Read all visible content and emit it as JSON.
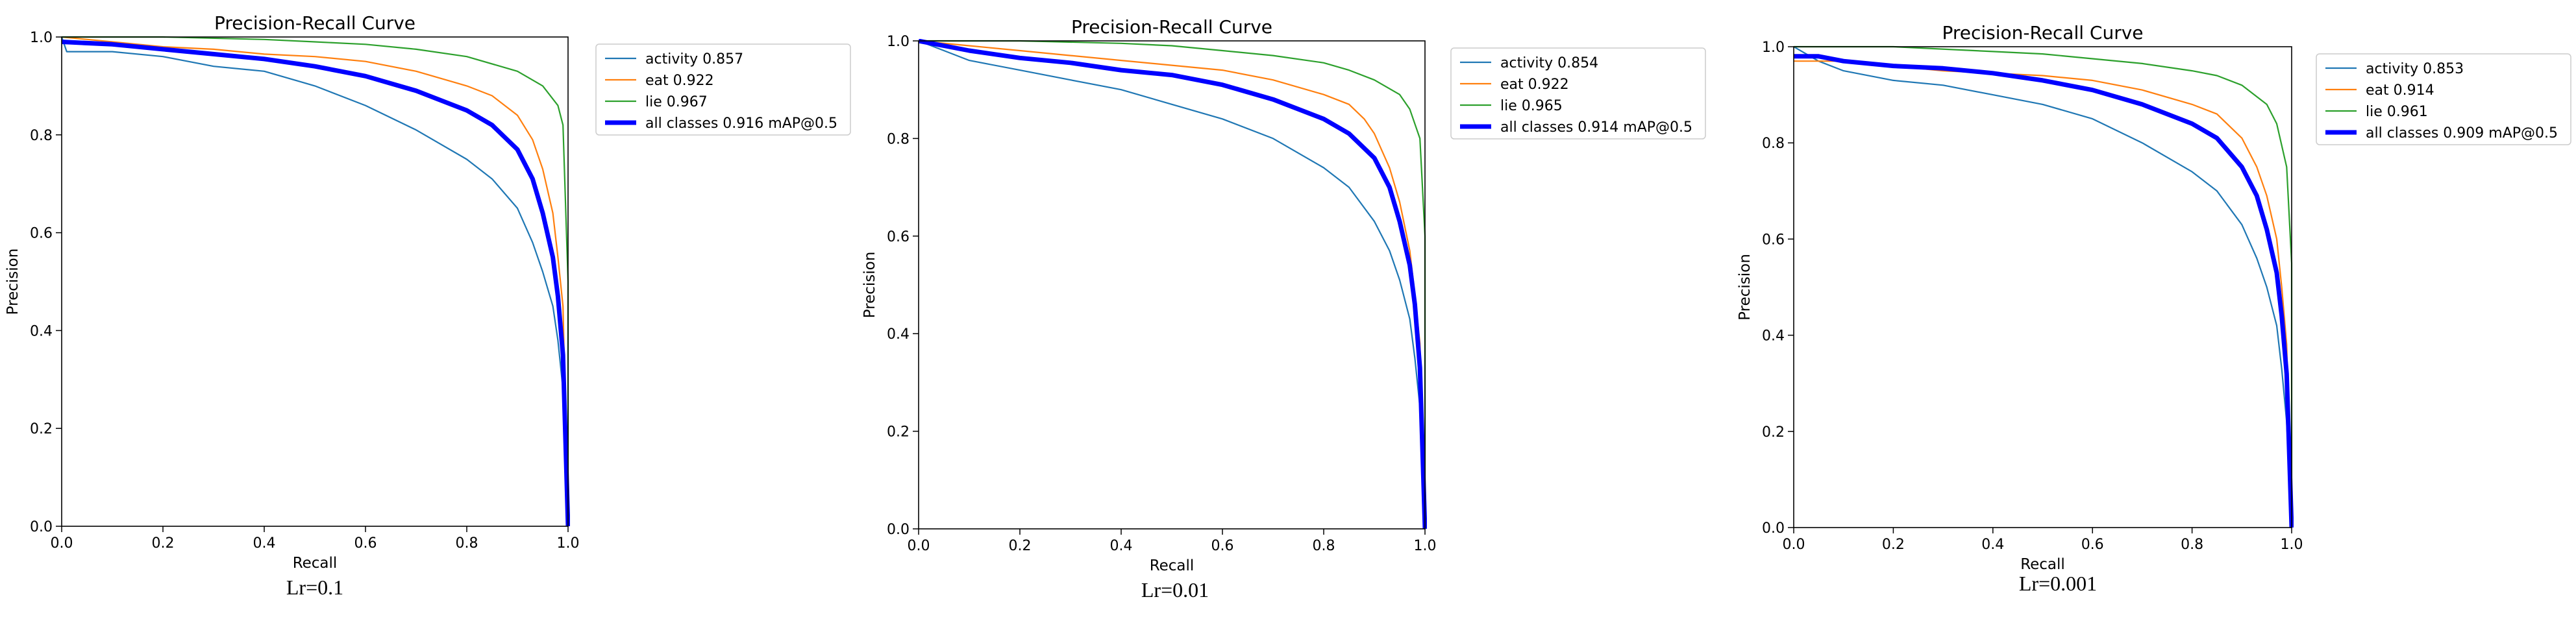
{
  "legend_location": "outside-right-top",
  "colors": {
    "activity": "#1f77b4",
    "eat": "#ff7f0e",
    "lie": "#2ca02c",
    "all": "#0000ff"
  },
  "chart_data": [
    {
      "type": "line",
      "title": "Precision-Recall Curve",
      "xlabel": "Recall",
      "ylabel": "Precision",
      "xlim": [
        0,
        1
      ],
      "ylim": [
        0,
        1
      ],
      "xticks": [
        "0.0",
        "0.2",
        "0.4",
        "0.6",
        "0.8",
        "1.0"
      ],
      "yticks": [
        "0.0",
        "0.2",
        "0.4",
        "0.6",
        "0.8",
        "1.0"
      ],
      "caption": "Lr=0.1",
      "series": [
        {
          "key": "activity",
          "name": "activity 0.857",
          "points": [
            [
              0,
              1
            ],
            [
              0.01,
              0.97
            ],
            [
              0.1,
              0.97
            ],
            [
              0.2,
              0.96
            ],
            [
              0.3,
              0.94
            ],
            [
              0.4,
              0.93
            ],
            [
              0.5,
              0.9
            ],
            [
              0.6,
              0.86
            ],
            [
              0.7,
              0.81
            ],
            [
              0.8,
              0.75
            ],
            [
              0.85,
              0.71
            ],
            [
              0.9,
              0.65
            ],
            [
              0.93,
              0.58
            ],
            [
              0.95,
              0.52
            ],
            [
              0.97,
              0.45
            ],
            [
              0.98,
              0.38
            ],
            [
              0.99,
              0.28
            ],
            [
              1.0,
              0.0
            ]
          ]
        },
        {
          "key": "eat",
          "name": "eat 0.922",
          "points": [
            [
              0,
              1
            ],
            [
              0.1,
              0.99
            ],
            [
              0.2,
              0.98
            ],
            [
              0.3,
              0.975
            ],
            [
              0.4,
              0.965
            ],
            [
              0.5,
              0.96
            ],
            [
              0.6,
              0.95
            ],
            [
              0.7,
              0.93
            ],
            [
              0.8,
              0.9
            ],
            [
              0.85,
              0.88
            ],
            [
              0.9,
              0.84
            ],
            [
              0.93,
              0.79
            ],
            [
              0.95,
              0.73
            ],
            [
              0.97,
              0.64
            ],
            [
              0.98,
              0.55
            ],
            [
              0.99,
              0.45
            ],
            [
              1.0,
              0.0
            ]
          ]
        },
        {
          "key": "lie",
          "name": "lie 0.967",
          "points": [
            [
              0,
              1
            ],
            [
              0.2,
              1
            ],
            [
              0.4,
              0.995
            ],
            [
              0.5,
              0.99
            ],
            [
              0.6,
              0.985
            ],
            [
              0.7,
              0.975
            ],
            [
              0.8,
              0.96
            ],
            [
              0.9,
              0.93
            ],
            [
              0.95,
              0.9
            ],
            [
              0.98,
              0.86
            ],
            [
              0.99,
              0.82
            ],
            [
              1.0,
              0.5
            ],
            [
              1.0,
              0.0
            ]
          ]
        },
        {
          "key": "all",
          "name": "all classes 0.916 mAP@0.5",
          "bold": true,
          "points": [
            [
              0,
              0.99
            ],
            [
              0.1,
              0.985
            ],
            [
              0.2,
              0.975
            ],
            [
              0.3,
              0.965
            ],
            [
              0.4,
              0.955
            ],
            [
              0.5,
              0.94
            ],
            [
              0.6,
              0.92
            ],
            [
              0.7,
              0.89
            ],
            [
              0.8,
              0.85
            ],
            [
              0.85,
              0.82
            ],
            [
              0.9,
              0.77
            ],
            [
              0.93,
              0.71
            ],
            [
              0.95,
              0.64
            ],
            [
              0.97,
              0.55
            ],
            [
              0.98,
              0.47
            ],
            [
              0.99,
              0.35
            ],
            [
              1.0,
              0.0
            ]
          ]
        }
      ]
    },
    {
      "type": "line",
      "title": "Precision-Recall Curve",
      "xlabel": "Recall",
      "ylabel": "Precision",
      "xlim": [
        0,
        1
      ],
      "ylim": [
        0,
        1
      ],
      "xticks": [
        "0.0",
        "0.2",
        "0.4",
        "0.6",
        "0.8",
        "1.0"
      ],
      "yticks": [
        "0.0",
        "0.2",
        "0.4",
        "0.6",
        "0.8",
        "1.0"
      ],
      "caption": "Lr=0.01",
      "series": [
        {
          "key": "activity",
          "name": "activity 0.854",
          "points": [
            [
              0,
              1
            ],
            [
              0.05,
              0.98
            ],
            [
              0.1,
              0.96
            ],
            [
              0.2,
              0.94
            ],
            [
              0.3,
              0.92
            ],
            [
              0.4,
              0.9
            ],
            [
              0.5,
              0.87
            ],
            [
              0.6,
              0.84
            ],
            [
              0.7,
              0.8
            ],
            [
              0.8,
              0.74
            ],
            [
              0.85,
              0.7
            ],
            [
              0.9,
              0.63
            ],
            [
              0.93,
              0.57
            ],
            [
              0.95,
              0.51
            ],
            [
              0.97,
              0.43
            ],
            [
              0.98,
              0.35
            ],
            [
              0.99,
              0.25
            ],
            [
              1.0,
              0.0
            ]
          ]
        },
        {
          "key": "eat",
          "name": "eat 0.922",
          "points": [
            [
              0,
              1
            ],
            [
              0.1,
              0.99
            ],
            [
              0.2,
              0.98
            ],
            [
              0.3,
              0.97
            ],
            [
              0.4,
              0.96
            ],
            [
              0.5,
              0.95
            ],
            [
              0.6,
              0.94
            ],
            [
              0.7,
              0.92
            ],
            [
              0.8,
              0.89
            ],
            [
              0.85,
              0.87
            ],
            [
              0.88,
              0.84
            ],
            [
              0.9,
              0.81
            ],
            [
              0.93,
              0.74
            ],
            [
              0.95,
              0.67
            ],
            [
              0.97,
              0.57
            ],
            [
              0.98,
              0.48
            ],
            [
              0.99,
              0.38
            ],
            [
              1.0,
              0.0
            ]
          ]
        },
        {
          "key": "lie",
          "name": "lie 0.965",
          "points": [
            [
              0,
              1
            ],
            [
              0.2,
              1
            ],
            [
              0.4,
              0.995
            ],
            [
              0.5,
              0.99
            ],
            [
              0.6,
              0.98
            ],
            [
              0.7,
              0.97
            ],
            [
              0.8,
              0.955
            ],
            [
              0.85,
              0.94
            ],
            [
              0.9,
              0.92
            ],
            [
              0.95,
              0.89
            ],
            [
              0.97,
              0.86
            ],
            [
              0.99,
              0.8
            ],
            [
              1.0,
              0.6
            ],
            [
              1.0,
              0.0
            ]
          ]
        },
        {
          "key": "all",
          "name": "all classes 0.914 mAP@0.5",
          "bold": true,
          "points": [
            [
              0,
              1
            ],
            [
              0.05,
              0.99
            ],
            [
              0.1,
              0.98
            ],
            [
              0.2,
              0.965
            ],
            [
              0.3,
              0.955
            ],
            [
              0.4,
              0.94
            ],
            [
              0.5,
              0.93
            ],
            [
              0.6,
              0.91
            ],
            [
              0.7,
              0.88
            ],
            [
              0.8,
              0.84
            ],
            [
              0.85,
              0.81
            ],
            [
              0.9,
              0.76
            ],
            [
              0.93,
              0.7
            ],
            [
              0.95,
              0.63
            ],
            [
              0.97,
              0.54
            ],
            [
              0.98,
              0.46
            ],
            [
              0.99,
              0.33
            ],
            [
              1.0,
              0.0
            ]
          ]
        }
      ]
    },
    {
      "type": "line",
      "title": "Precision-Recall Curve",
      "xlabel": "Recall",
      "ylabel": "Precision",
      "xlim": [
        0,
        1
      ],
      "ylim": [
        0,
        1
      ],
      "xticks": [
        "0.0",
        "0.2",
        "0.4",
        "0.6",
        "0.8",
        "1.0"
      ],
      "yticks": [
        "0.0",
        "0.2",
        "0.4",
        "0.6",
        "0.8",
        "1.0"
      ],
      "caption": "Lr=0.001",
      "series": [
        {
          "key": "activity",
          "name": "activity 0.853",
          "points": [
            [
              0,
              1
            ],
            [
              0.05,
              0.97
            ],
            [
              0.1,
              0.95
            ],
            [
              0.2,
              0.93
            ],
            [
              0.3,
              0.92
            ],
            [
              0.4,
              0.9
            ],
            [
              0.5,
              0.88
            ],
            [
              0.6,
              0.85
            ],
            [
              0.7,
              0.8
            ],
            [
              0.8,
              0.74
            ],
            [
              0.85,
              0.7
            ],
            [
              0.9,
              0.63
            ],
            [
              0.93,
              0.56
            ],
            [
              0.95,
              0.5
            ],
            [
              0.97,
              0.42
            ],
            [
              0.98,
              0.33
            ],
            [
              0.99,
              0.22
            ],
            [
              1.0,
              0.0
            ]
          ]
        },
        {
          "key": "eat",
          "name": "eat 0.914",
          "points": [
            [
              0,
              0.97
            ],
            [
              0.1,
              0.97
            ],
            [
              0.2,
              0.96
            ],
            [
              0.3,
              0.95
            ],
            [
              0.4,
              0.945
            ],
            [
              0.5,
              0.94
            ],
            [
              0.6,
              0.93
            ],
            [
              0.7,
              0.91
            ],
            [
              0.8,
              0.88
            ],
            [
              0.85,
              0.86
            ],
            [
              0.9,
              0.81
            ],
            [
              0.93,
              0.75
            ],
            [
              0.95,
              0.69
            ],
            [
              0.97,
              0.6
            ],
            [
              0.98,
              0.5
            ],
            [
              0.99,
              0.38
            ],
            [
              1.0,
              0.0
            ]
          ]
        },
        {
          "key": "lie",
          "name": "lie 0.961",
          "points": [
            [
              0,
              1
            ],
            [
              0.2,
              1
            ],
            [
              0.4,
              0.99
            ],
            [
              0.5,
              0.985
            ],
            [
              0.6,
              0.975
            ],
            [
              0.7,
              0.965
            ],
            [
              0.8,
              0.95
            ],
            [
              0.85,
              0.94
            ],
            [
              0.9,
              0.92
            ],
            [
              0.95,
              0.88
            ],
            [
              0.97,
              0.84
            ],
            [
              0.99,
              0.75
            ],
            [
              1.0,
              0.55
            ],
            [
              1.0,
              0.0
            ]
          ]
        },
        {
          "key": "all",
          "name": "all classes 0.909 mAP@0.5",
          "bold": true,
          "points": [
            [
              0,
              0.98
            ],
            [
              0.05,
              0.98
            ],
            [
              0.1,
              0.97
            ],
            [
              0.2,
              0.96
            ],
            [
              0.3,
              0.955
            ],
            [
              0.4,
              0.945
            ],
            [
              0.5,
              0.93
            ],
            [
              0.6,
              0.91
            ],
            [
              0.7,
              0.88
            ],
            [
              0.8,
              0.84
            ],
            [
              0.85,
              0.81
            ],
            [
              0.9,
              0.75
            ],
            [
              0.93,
              0.69
            ],
            [
              0.95,
              0.62
            ],
            [
              0.97,
              0.53
            ],
            [
              0.98,
              0.44
            ],
            [
              0.99,
              0.32
            ],
            [
              1.0,
              0.0
            ]
          ]
        }
      ]
    }
  ]
}
